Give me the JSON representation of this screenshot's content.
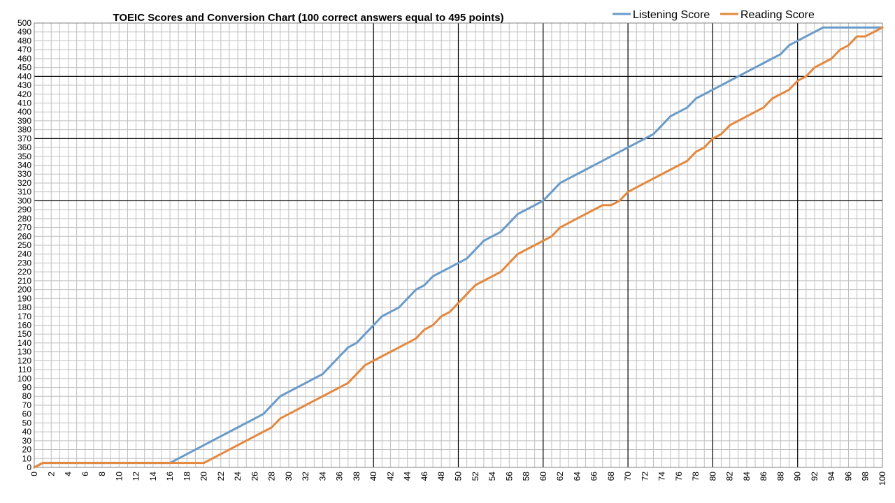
{
  "chart_data": {
    "type": "line",
    "title": "TOEIC Scores and Conversion Chart (100 correct answers equal to 495 points)",
    "xlabel": "",
    "ylabel": "",
    "xlim": [
      0,
      100
    ],
    "ylim": [
      0,
      500
    ],
    "x_ticks": [
      0,
      2,
      4,
      6,
      8,
      10,
      12,
      14,
      16,
      18,
      20,
      22,
      24,
      26,
      28,
      30,
      32,
      34,
      36,
      38,
      40,
      42,
      44,
      46,
      48,
      50,
      52,
      54,
      56,
      58,
      60,
      62,
      64,
      66,
      68,
      70,
      72,
      74,
      76,
      78,
      80,
      82,
      84,
      86,
      88,
      90,
      92,
      94,
      96,
      98,
      100
    ],
    "y_ticks": [
      0,
      10,
      20,
      30,
      40,
      50,
      60,
      70,
      80,
      90,
      100,
      110,
      120,
      130,
      140,
      150,
      160,
      170,
      180,
      190,
      200,
      210,
      220,
      230,
      240,
      250,
      260,
      270,
      280,
      290,
      300,
      310,
      320,
      330,
      340,
      350,
      360,
      370,
      380,
      390,
      400,
      410,
      420,
      430,
      440,
      450,
      460,
      470,
      480,
      490,
      500
    ],
    "grid": true,
    "major_vertical_lines": [
      40,
      50,
      60,
      70,
      80,
      90
    ],
    "major_horizontal_lines": [
      300,
      370,
      440
    ],
    "legend_position": "top-right",
    "x": [
      0,
      1,
      2,
      3,
      4,
      5,
      6,
      7,
      8,
      9,
      10,
      11,
      12,
      13,
      14,
      15,
      16,
      17,
      18,
      19,
      20,
      21,
      22,
      23,
      24,
      25,
      26,
      27,
      28,
      29,
      30,
      31,
      32,
      33,
      34,
      35,
      36,
      37,
      38,
      39,
      40,
      41,
      42,
      43,
      44,
      45,
      46,
      47,
      48,
      49,
      50,
      51,
      52,
      53,
      54,
      55,
      56,
      57,
      58,
      59,
      60,
      61,
      62,
      63,
      64,
      65,
      66,
      67,
      68,
      69,
      70,
      71,
      72,
      73,
      74,
      75,
      76,
      77,
      78,
      79,
      80,
      81,
      82,
      83,
      84,
      85,
      86,
      87,
      88,
      89,
      90,
      91,
      92,
      93,
      94,
      95,
      96,
      97,
      98,
      99,
      100
    ],
    "series": [
      {
        "name": "Listening Score",
        "color": "#6A9BC8",
        "values": [
          0,
          5,
          5,
          5,
          5,
          5,
          5,
          5,
          5,
          5,
          5,
          5,
          5,
          5,
          5,
          5,
          5,
          10,
          15,
          20,
          25,
          30,
          35,
          40,
          45,
          50,
          55,
          60,
          70,
          80,
          85,
          90,
          95,
          100,
          105,
          115,
          125,
          135,
          140,
          150,
          160,
          170,
          175,
          180,
          190,
          200,
          205,
          215,
          220,
          225,
          230,
          235,
          245,
          255,
          260,
          265,
          275,
          285,
          290,
          295,
          300,
          310,
          320,
          325,
          330,
          335,
          340,
          345,
          350,
          355,
          360,
          365,
          370,
          375,
          385,
          395,
          400,
          405,
          415,
          420,
          425,
          430,
          435,
          440,
          445,
          450,
          455,
          460,
          465,
          475,
          480,
          485,
          490,
          495,
          495,
          495,
          495,
          495,
          495,
          495,
          495
        ]
      },
      {
        "name": "Reading Score",
        "color": "#E4883E",
        "values": [
          0,
          5,
          5,
          5,
          5,
          5,
          5,
          5,
          5,
          5,
          5,
          5,
          5,
          5,
          5,
          5,
          5,
          5,
          5,
          5,
          5,
          10,
          15,
          20,
          25,
          30,
          35,
          40,
          45,
          55,
          60,
          65,
          70,
          75,
          80,
          85,
          90,
          95,
          105,
          115,
          120,
          125,
          130,
          135,
          140,
          145,
          155,
          160,
          170,
          175,
          185,
          195,
          205,
          210,
          215,
          220,
          230,
          240,
          245,
          250,
          255,
          260,
          270,
          275,
          280,
          285,
          290,
          295,
          295,
          300,
          310,
          315,
          320,
          325,
          330,
          335,
          340,
          345,
          355,
          360,
          370,
          375,
          385,
          390,
          395,
          400,
          405,
          415,
          420,
          425,
          435,
          440,
          450,
          455,
          460,
          470,
          475,
          485,
          485,
          490,
          495
        ]
      }
    ]
  }
}
